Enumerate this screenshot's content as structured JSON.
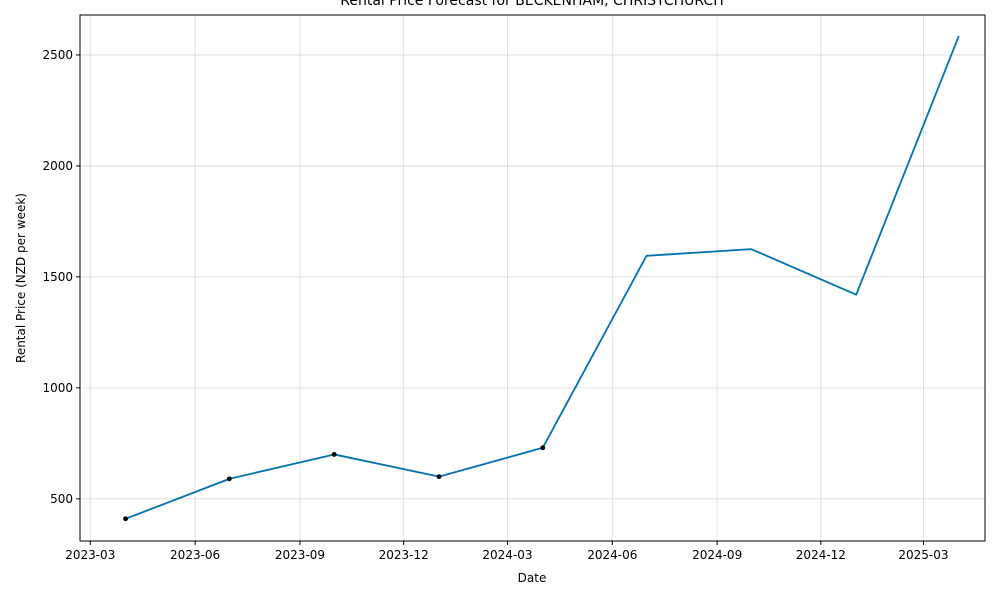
{
  "chart_data": {
    "type": "line",
    "title": "Rental Price Forecast for BECKENHAM, CHRISTCHURCH",
    "xlabel": "Date",
    "ylabel": "Rental Price (NZD per week)",
    "x_ticks": [
      "2023-03",
      "2023-06",
      "2023-09",
      "2023-12",
      "2024-03",
      "2024-06",
      "2024-09",
      "2024-12",
      "2025-03"
    ],
    "y_ticks": [
      500,
      1000,
      1500,
      2000,
      2500
    ],
    "ylim": [
      310,
      2680
    ],
    "xlim": [
      "2023-02-20",
      "2025-04-24"
    ],
    "grid": true,
    "series": [
      {
        "color": "#0072b2",
        "x": [
          "2023-04-01",
          "2023-07-01",
          "2023-10-01",
          "2024-01-01",
          "2024-04-01",
          "2024-07-01",
          "2024-10-01",
          "2025-01-01",
          "2025-04-01"
        ],
        "y": [
          410,
          590,
          700,
          600,
          730,
          1595,
          1625,
          1420,
          2585
        ]
      }
    ],
    "observed": {
      "color": "#000000",
      "x": [
        "2023-04-01",
        "2023-07-01",
        "2023-10-01",
        "2024-01-01",
        "2024-04-01"
      ],
      "y": [
        410,
        590,
        700,
        600,
        730
      ]
    }
  }
}
